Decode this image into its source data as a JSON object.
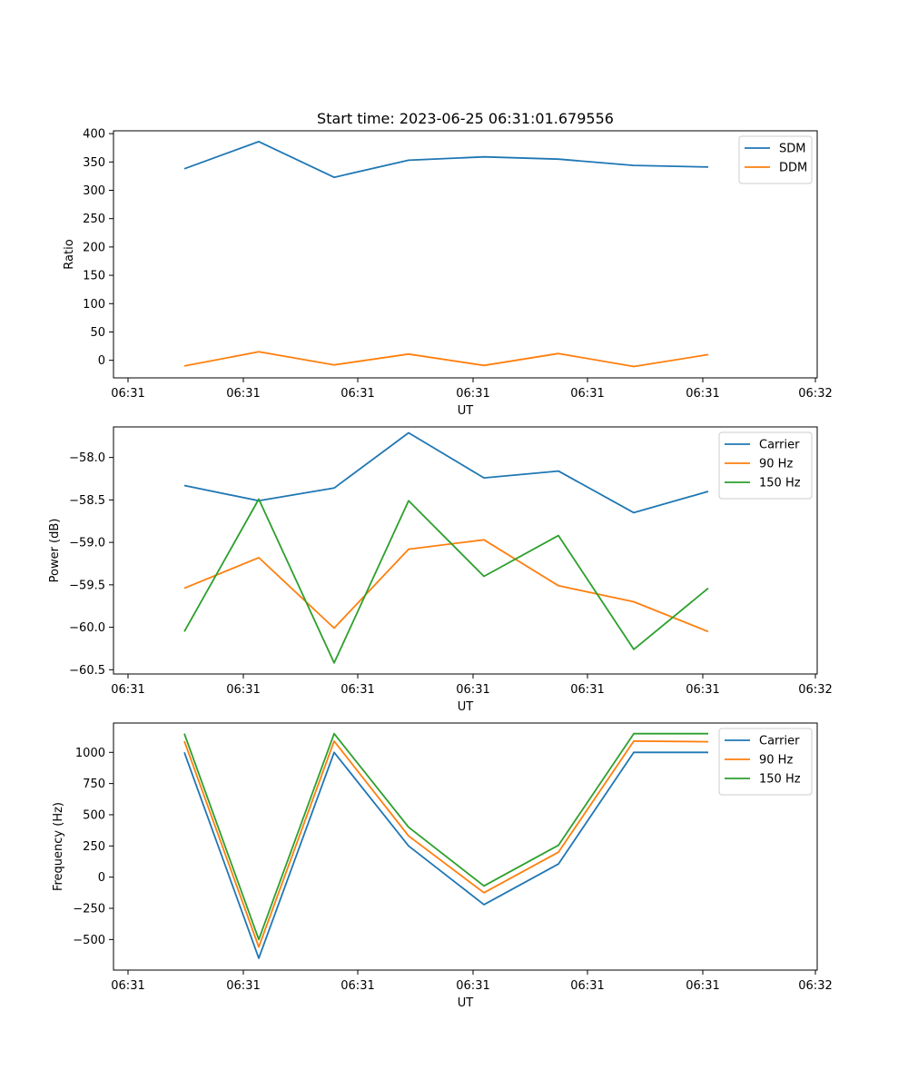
{
  "figure_title": "Start time: 2023-06-25 06:31:01.679556",
  "chart_data": [
    {
      "type": "line",
      "title": "Start time: 2023-06-25 06:31:01.679556",
      "xlabel": "UT",
      "ylabel": "Ratio",
      "x_tick_labels": [
        "06:31",
        "06:31",
        "06:31",
        "06:31",
        "06:31",
        "06:31",
        "06:32"
      ],
      "y_ticks": [
        0,
        50,
        100,
        150,
        200,
        250,
        300,
        350,
        400
      ],
      "ylim": [
        -31,
        405
      ],
      "legend_position": "top-right",
      "series": [
        {
          "name": "SDM",
          "color": "#1f77b4",
          "values": [
            338,
            386,
            323,
            353,
            359,
            355,
            344,
            341
          ]
        },
        {
          "name": "DDM",
          "color": "#ff7f0e",
          "values": [
            -10,
            15,
            -8,
            11,
            -9,
            12,
            -11,
            10
          ]
        }
      ]
    },
    {
      "type": "line",
      "title": "",
      "xlabel": "UT",
      "ylabel": "Power (dB)",
      "x_tick_labels": [
        "06:31",
        "06:31",
        "06:31",
        "06:31",
        "06:31",
        "06:31",
        "06:32"
      ],
      "y_ticks": [
        -58.0,
        -58.5,
        -59.0,
        -59.5,
        -60.0,
        -60.5
      ],
      "ylim": [
        -60.55,
        -57.64
      ],
      "legend_position": "top-right",
      "series": [
        {
          "name": "Carrier",
          "color": "#1f77b4",
          "values": [
            -58.33,
            -58.51,
            -58.36,
            -57.71,
            -58.24,
            -58.16,
            -58.65,
            -58.4
          ]
        },
        {
          "name": "90 Hz",
          "color": "#ff7f0e",
          "values": [
            -59.54,
            -59.18,
            -60.01,
            -59.08,
            -58.97,
            -59.51,
            -59.7,
            -60.05
          ]
        },
        {
          "name": "150 Hz",
          "color": "#2ca02c",
          "values": [
            -60.05,
            -58.49,
            -60.42,
            -58.51,
            -59.4,
            -58.92,
            -60.26,
            -59.54
          ]
        }
      ]
    },
    {
      "type": "line",
      "title": "",
      "xlabel": "UT",
      "ylabel": "Frequency (Hz)",
      "x_tick_labels": [
        "06:31",
        "06:31",
        "06:31",
        "06:31",
        "06:31",
        "06:31",
        "06:32"
      ],
      "y_ticks": [
        -500,
        -250,
        0,
        250,
        500,
        750,
        1000
      ],
      "ylim": [
        -745,
        1235
      ],
      "legend_position": "top-right",
      "series": [
        {
          "name": "Carrier",
          "color": "#1f77b4",
          "values": [
            1000,
            -650,
            1000,
            250,
            -220,
            105,
            1000,
            1000
          ]
        },
        {
          "name": "90 Hz",
          "color": "#ff7f0e",
          "values": [
            1090,
            -560,
            1090,
            330,
            -125,
            200,
            1090,
            1085
          ]
        },
        {
          "name": "150 Hz",
          "color": "#2ca02c",
          "values": [
            1150,
            -500,
            1150,
            400,
            -70,
            255,
            1150,
            1150
          ]
        }
      ]
    }
  ]
}
